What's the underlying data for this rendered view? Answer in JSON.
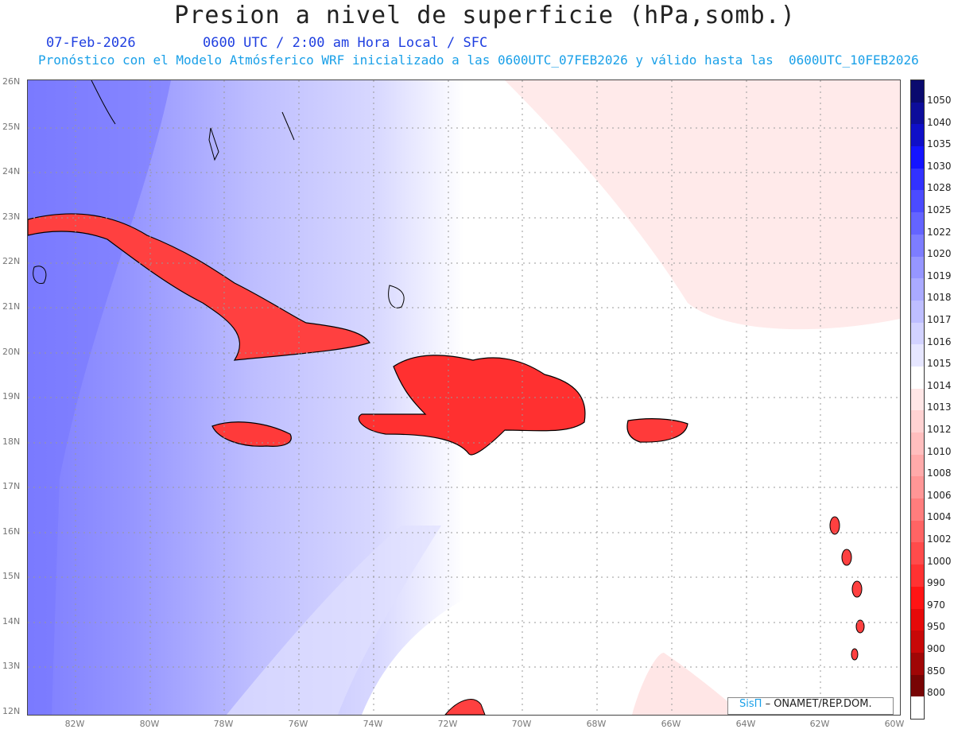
{
  "header": {
    "title": "Presion a nivel de superficie (hPa,somb.)",
    "date": "07-Feb-2026",
    "time": "0600 UTC / 2:00 am Hora Local / SFC",
    "description": "Pronóstico con el Modelo Atmósferico WRF inicializado a las 0600UTC_07FEB2026 y válido hasta las  0600UTC_10FEB2026"
  },
  "map": {
    "lat_labels": [
      "26N",
      "25N",
      "24N",
      "23N",
      "22N",
      "21N",
      "20N",
      "19N",
      "18N",
      "17N",
      "16N",
      "15N",
      "14N",
      "13N",
      "12N"
    ],
    "lon_labels": [
      "82W",
      "80W",
      "78W",
      "76W",
      "74W",
      "72W",
      "70W",
      "68W",
      "66W",
      "64W",
      "62W",
      "60W"
    ]
  },
  "colorbar": {
    "labels": [
      "1050",
      "1040",
      "1035",
      "1030",
      "1028",
      "1025",
      "1022",
      "1020",
      "1019",
      "1018",
      "1017",
      "1016",
      "1015",
      "1014",
      "1013",
      "1012",
      "1010",
      "1008",
      "1006",
      "1004",
      "1002",
      "1000",
      "990",
      "970",
      "950",
      "900",
      "850",
      "800"
    ],
    "colors": [
      "#0a0a6e",
      "#0d0d9a",
      "#0f0fc8",
      "#1414ff",
      "#3232ff",
      "#4b4bff",
      "#6464ff",
      "#7d7dff",
      "#9696ff",
      "#aaaaff",
      "#bebeff",
      "#d2d2ff",
      "#e6e6ff",
      "#ffffff",
      "#ffe6e6",
      "#ffd2d2",
      "#ffbebe",
      "#ffaaaa",
      "#ff9696",
      "#ff7d7d",
      "#ff6464",
      "#ff4b4b",
      "#ff3232",
      "#ff1414",
      "#e60a0a",
      "#c80808",
      "#a00606",
      "#780404"
    ]
  },
  "credit": {
    "logo": "SisΠ",
    "org": "– ONAMET/REP.DOM."
  }
}
